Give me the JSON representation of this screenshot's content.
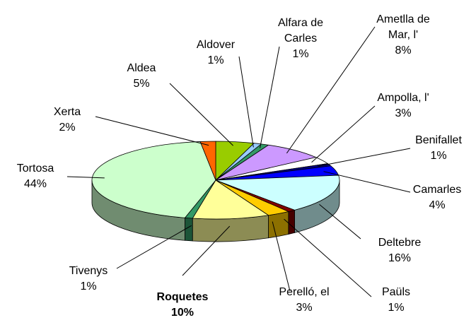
{
  "chart_data": {
    "type": "pie",
    "style": "3d",
    "categories": [
      "Aldea",
      "Aldover",
      "Alfara de Carles",
      "Ametlla de Mar, l'",
      "Ampolla, l'",
      "Benifallet",
      "Camarles",
      "Deltebre",
      "Paüls",
      "Perelló, el",
      "Roquetes",
      "Tivenys",
      "Tortosa",
      "Xerta"
    ],
    "values": [
      5,
      1,
      1,
      8,
      3,
      1,
      4,
      16,
      1,
      3,
      10,
      1,
      44,
      2
    ],
    "value_labels": [
      "5%",
      "1%",
      "1%",
      "8%",
      "3%",
      "1%",
      "4%",
      "16%",
      "1%",
      "3%",
      "10%",
      "1%",
      "44%",
      "2%"
    ],
    "colors": [
      "#99cc00",
      "#99ccff",
      "#339966",
      "#cc99ff",
      "#ffffff",
      "#000080",
      "#0000ff",
      "#ccffff",
      "#800000",
      "#ffcc00",
      "#ffff99",
      "#339966",
      "#ccffcc",
      "#ff6600"
    ],
    "emphasized": "Roquetes"
  }
}
